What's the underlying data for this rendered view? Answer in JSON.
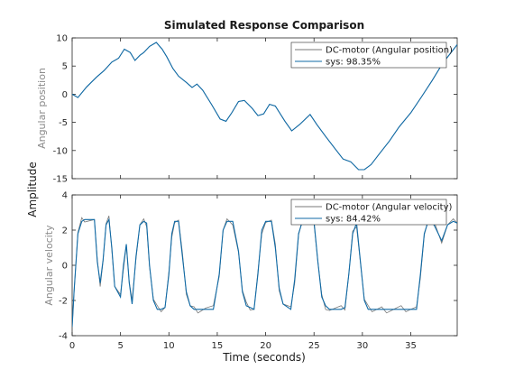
{
  "colors": {
    "measured": "#7a7a7a",
    "model": "#0f6aa6",
    "axes": "#262626"
  },
  "chart_data": [
    {
      "type": "line",
      "title": "Simulated Response Comparison",
      "xlabel": "Time (seconds)",
      "shared_ylabel": "Amplitude",
      "ylabel": "Angular position",
      "xlim": [
        0,
        39.8
      ],
      "ylim": [
        -15,
        10
      ],
      "xticks": [
        "0",
        "5",
        "10",
        "15",
        "20",
        "25",
        "30",
        "35"
      ],
      "yticks": [
        "10",
        "5",
        "0",
        "-5",
        "-10",
        "-15"
      ],
      "legend_position": "top-right",
      "x": [
        0,
        0.6,
        1.5,
        2.5,
        3.3,
        4.1,
        4.8,
        5.4,
        6.0,
        6.5,
        7.0,
        7.4,
        8.0,
        8.7,
        9.3,
        9.8,
        10.4,
        11.0,
        11.8,
        12.4,
        12.9,
        13.5,
        14.4,
        15.3,
        15.9,
        16.5,
        17.2,
        17.8,
        18.6,
        19.2,
        19.8,
        20.4,
        21.0,
        22.0,
        22.7,
        23.5,
        24.6,
        25.3,
        26.2,
        27.1,
        28.0,
        28.8,
        29.6,
        30.2,
        30.9,
        31.7,
        32.8,
        33.8,
        35.0,
        36.1,
        37.2,
        38.3,
        39.8
      ],
      "series": [
        {
          "name": "DC-motor (Angular position)",
          "values": [
            0,
            -0.6,
            1.3,
            3.0,
            4.2,
            5.7,
            6.4,
            8.0,
            7.4,
            6.0,
            6.9,
            7.4,
            8.5,
            9.2,
            8.0,
            6.6,
            4.6,
            3.2,
            2.1,
            1.2,
            1.8,
            0.7,
            -1.8,
            -4.4,
            -4.8,
            -3.3,
            -1.3,
            -1.1,
            -2.5,
            -3.8,
            -3.5,
            -1.8,
            -2.1,
            -4.8,
            -6.5,
            -5.4,
            -3.6,
            -5.4,
            -7.5,
            -9.5,
            -11.5,
            -12.0,
            -13.4,
            -13.4,
            -12.5,
            -10.7,
            -8.3,
            -5.8,
            -3.3,
            -0.5,
            2.4,
            5.5,
            8.8
          ]
        },
        {
          "name": "sys: 98.35%",
          "values": [
            0,
            -0.6,
            1.3,
            3.0,
            4.2,
            5.7,
            6.4,
            8.0,
            7.4,
            6.0,
            6.9,
            7.4,
            8.5,
            9.2,
            8.0,
            6.6,
            4.6,
            3.2,
            2.1,
            1.2,
            1.8,
            0.7,
            -1.8,
            -4.4,
            -4.8,
            -3.3,
            -1.3,
            -1.1,
            -2.5,
            -3.8,
            -3.5,
            -1.8,
            -2.1,
            -4.8,
            -6.5,
            -5.4,
            -3.6,
            -5.4,
            -7.5,
            -9.5,
            -11.5,
            -12.0,
            -13.4,
            -13.4,
            -12.5,
            -10.7,
            -8.3,
            -5.8,
            -3.3,
            -0.5,
            2.4,
            5.5,
            8.8
          ]
        }
      ]
    },
    {
      "type": "line",
      "xlabel": "Time (seconds)",
      "ylabel": "Angular velocity",
      "xlim": [
        0,
        39.8
      ],
      "ylim": [
        -4,
        4
      ],
      "xticks": [
        "0",
        "5",
        "10",
        "15",
        "20",
        "25",
        "30",
        "35"
      ],
      "yticks": [
        "4",
        "2",
        "0",
        "-2",
        "-4"
      ],
      "legend_position": "top-right",
      "x": [
        0,
        0.2,
        0.6,
        1.0,
        1.3,
        2.3,
        2.6,
        2.9,
        3.2,
        3.5,
        3.8,
        4.1,
        4.4,
        5.0,
        5.3,
        5.6,
        5.9,
        6.2,
        6.6,
        7.0,
        7.4,
        7.7,
        8.0,
        8.4,
        8.8,
        9.2,
        9.6,
        10.0,
        10.3,
        10.6,
        11.0,
        11.4,
        11.8,
        12.2,
        12.6,
        13.0,
        13.4,
        13.8,
        14.6,
        15.2,
        15.6,
        16.0,
        16.6,
        17.2,
        17.6,
        18.0,
        18.4,
        18.8,
        19.2,
        19.6,
        20.0,
        20.6,
        21.0,
        21.4,
        21.8,
        22.6,
        23.0,
        23.4,
        23.8,
        24.4,
        25.0,
        25.4,
        25.8,
        26.2,
        26.6,
        27.2,
        27.8,
        28.2,
        28.6,
        29.0,
        29.4,
        29.8,
        30.2,
        30.6,
        31.0,
        31.5,
        32.0,
        32.5,
        33.0,
        33.5,
        34.0,
        34.5,
        35.0,
        35.6,
        36.0,
        36.4,
        36.8,
        37.4,
        38.2,
        38.8,
        39.4,
        39.8
      ],
      "series": [
        {
          "name": "DC-motor (Angular velocity)",
          "values": [
            -3.5,
            -1.5,
            1.8,
            2.5,
            2.6,
            2.6,
            0.2,
            -1.0,
            0.3,
            2.3,
            2.6,
            1.0,
            -1.2,
            -1.8,
            0.0,
            1.2,
            -1.0,
            -2.2,
            0.5,
            2.3,
            2.5,
            2.4,
            0.0,
            -2.0,
            -2.5,
            -2.5,
            -2.4,
            -0.5,
            1.8,
            2.5,
            2.5,
            0.5,
            -1.5,
            -2.3,
            -2.5,
            -2.5,
            -2.5,
            -2.5,
            -2.5,
            -0.5,
            2.0,
            2.5,
            2.5,
            0.8,
            -1.5,
            -2.3,
            -2.4,
            -2.5,
            -0.5,
            2.0,
            2.5,
            2.5,
            1.0,
            -1.3,
            -2.2,
            -2.5,
            -0.8,
            1.8,
            2.5,
            2.5,
            2.5,
            0.2,
            -1.8,
            -2.3,
            -2.5,
            -2.5,
            -2.5,
            -2.4,
            -0.5,
            1.8,
            2.4,
            0.2,
            -2.0,
            -2.5,
            -2.5,
            -2.5,
            -2.5,
            -2.5,
            -2.5,
            -2.5,
            -2.5,
            -2.5,
            -2.5,
            -2.5,
            -0.5,
            1.8,
            2.5,
            2.3,
            1.4,
            2.3,
            2.5,
            2.4
          ]
        },
        {
          "name": "sys: 84.42%",
          "values": [
            -3.5,
            -1.5,
            1.8,
            2.5,
            2.6,
            2.6,
            0.2,
            -1.0,
            0.3,
            2.3,
            2.6,
            1.0,
            -1.2,
            -1.8,
            0.0,
            1.2,
            -1.0,
            -2.2,
            0.5,
            2.3,
            2.5,
            2.4,
            0.0,
            -2.0,
            -2.5,
            -2.5,
            -2.4,
            -0.5,
            1.8,
            2.5,
            2.5,
            0.5,
            -1.5,
            -2.3,
            -2.5,
            -2.5,
            -2.5,
            -2.5,
            -2.5,
            -0.5,
            2.0,
            2.5,
            2.5,
            0.8,
            -1.5,
            -2.3,
            -2.4,
            -2.5,
            -0.5,
            2.0,
            2.5,
            2.5,
            1.0,
            -1.3,
            -2.2,
            -2.5,
            -0.8,
            1.8,
            2.5,
            2.5,
            2.5,
            0.2,
            -1.8,
            -2.3,
            -2.5,
            -2.5,
            -2.5,
            -2.4,
            -0.5,
            1.8,
            2.4,
            0.2,
            -2.0,
            -2.5,
            -2.5,
            -2.5,
            -2.5,
            -2.5,
            -2.5,
            -2.5,
            -2.5,
            -2.5,
            -2.5,
            -2.5,
            -0.5,
            1.8,
            2.5,
            2.3,
            1.4,
            2.3,
            2.5,
            2.4
          ]
        }
      ]
    }
  ]
}
